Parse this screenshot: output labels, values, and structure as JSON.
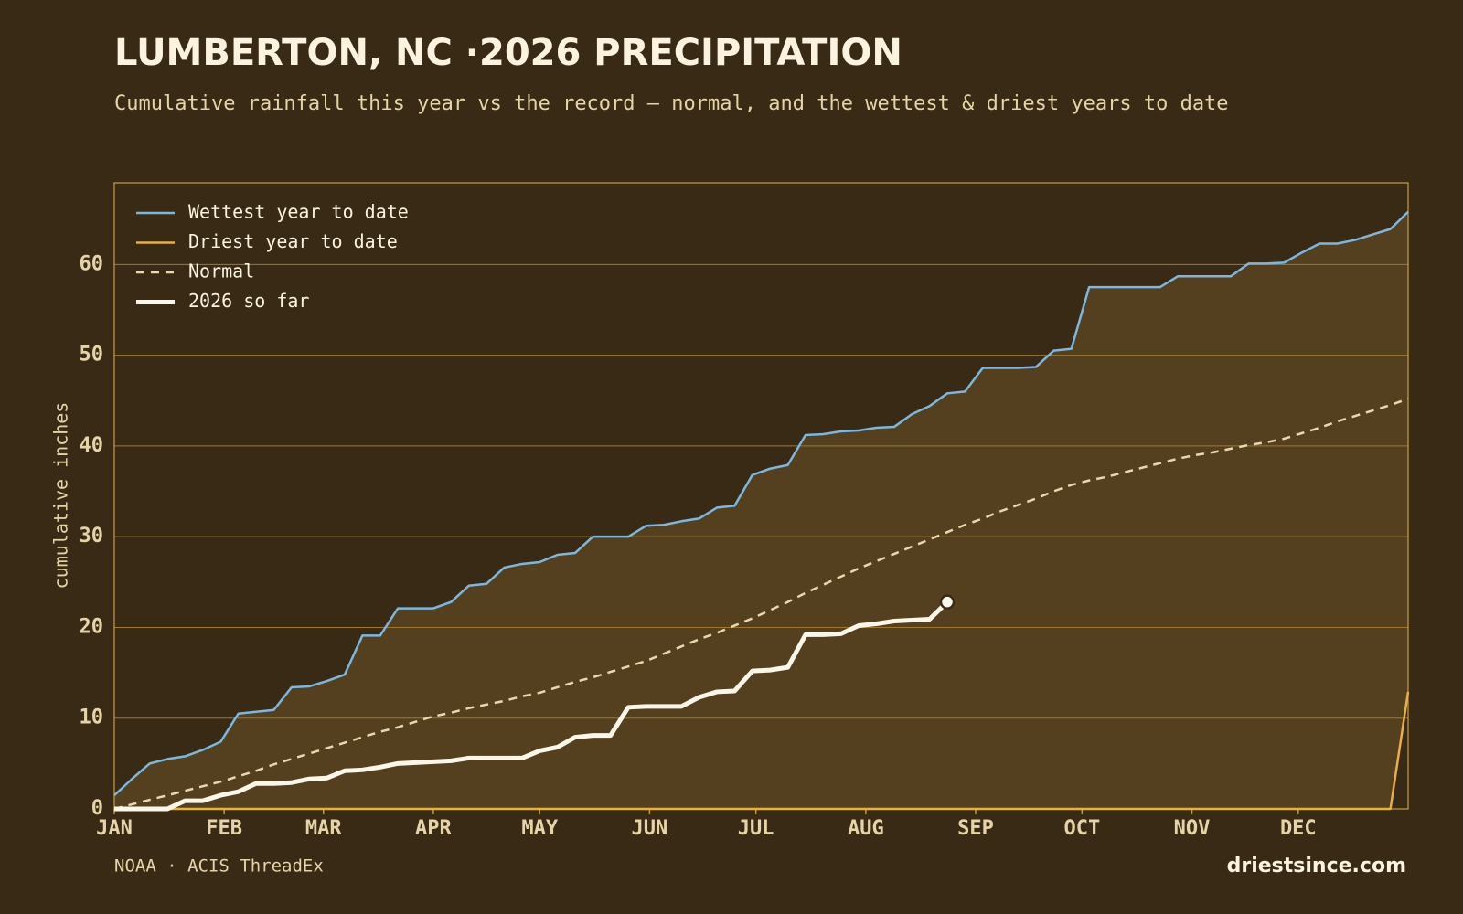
{
  "chart_data": {
    "type": "line",
    "title": "LUMBERTON, NC ·2026 PRECIPITATION",
    "subtitle": "Cumulative rainfall this year vs the record — normal, and the wettest & driest years to date",
    "y_label": "cumulative inches",
    "source": "NOAA · ACIS ThreadEx",
    "brand": "driestsince.com",
    "x": [
      0,
      5,
      10,
      15,
      20,
      25,
      30,
      35,
      40,
      45,
      50,
      55,
      60,
      65,
      70,
      75,
      80,
      85,
      90,
      95,
      100,
      105,
      110,
      115,
      120,
      125,
      130,
      135,
      140,
      145,
      150,
      155,
      160,
      165,
      170,
      175,
      180,
      185,
      190,
      195,
      200,
      205,
      210,
      215,
      220,
      225,
      230,
      235,
      240,
      245,
      250,
      255,
      260,
      265,
      270,
      275,
      280,
      285,
      290,
      295,
      300,
      305,
      310,
      315,
      320,
      325,
      330,
      335,
      340,
      345,
      350,
      355,
      360,
      365
    ],
    "xlim": [
      0,
      365
    ],
    "xticks": [
      {
        "value": 0,
        "label": "JAN"
      },
      {
        "value": 31,
        "label": "FEB"
      },
      {
        "value": 59,
        "label": "MAR"
      },
      {
        "value": 90,
        "label": "APR"
      },
      {
        "value": 120,
        "label": "MAY"
      },
      {
        "value": 151,
        "label": "JUN"
      },
      {
        "value": 181,
        "label": "JUL"
      },
      {
        "value": 212,
        "label": "AUG"
      },
      {
        "value": 243,
        "label": "SEP"
      },
      {
        "value": 273,
        "label": "OCT"
      },
      {
        "value": 304,
        "label": "NOV"
      },
      {
        "value": 334,
        "label": "DEC"
      }
    ],
    "ylim": [
      0,
      69
    ],
    "yticks": [
      0,
      10,
      20,
      30,
      40,
      50,
      60
    ],
    "grid": true,
    "legend": "top-left",
    "series": [
      {
        "name": "Wettest year to date",
        "color": "#7db7e0",
        "width": 2.5,
        "dashed": false,
        "values": [
          1.5,
          3.3,
          5.0,
          5.5,
          5.8,
          6.5,
          7.4,
          10.5,
          10.7,
          10.9,
          13.4,
          13.5,
          14.1,
          14.8,
          19.1,
          19.1,
          22.1,
          22.1,
          22.1,
          22.8,
          24.6,
          24.8,
          26.6,
          27.0,
          27.2,
          28.0,
          28.2,
          30.0,
          30.0,
          30.0,
          31.2,
          31.3,
          31.7,
          32.0,
          33.2,
          33.4,
          36.8,
          37.5,
          37.9,
          41.2,
          41.3,
          41.6,
          41.7,
          42.0,
          42.1,
          43.5,
          44.4,
          45.8,
          46.0,
          48.6,
          48.6,
          48.6,
          48.7,
          50.5,
          50.7,
          57.5,
          57.5,
          57.5,
          57.5,
          57.5,
          58.7,
          58.7,
          58.7,
          58.7,
          60.1,
          60.1,
          60.2,
          61.3,
          62.3,
          62.3,
          62.7,
          63.3,
          63.9,
          65.8
        ]
      },
      {
        "name": "Driest year to date",
        "color": "#e8b040",
        "width": 2.5,
        "dashed": false,
        "values": [
          0,
          0,
          0,
          0,
          0,
          0,
          0,
          0,
          0,
          0,
          0,
          0,
          0,
          0,
          0,
          0,
          0,
          0,
          0,
          0,
          0,
          0,
          0,
          0,
          0,
          0,
          0,
          0,
          0,
          0,
          0,
          0,
          0,
          0,
          0,
          0,
          0,
          0,
          0,
          0,
          0,
          0,
          0,
          0,
          0,
          0,
          0,
          0,
          0,
          0,
          0,
          0,
          0,
          0,
          0,
          0,
          0,
          0,
          0,
          0,
          0,
          0,
          0,
          0,
          0,
          0,
          0,
          0,
          0,
          0,
          0,
          0,
          0,
          12.9
        ]
      },
      {
        "name": "Normal",
        "color": "#e8d8b0",
        "width": 2.5,
        "dashed": true,
        "values": [
          0,
          0.5,
          1.0,
          1.5,
          2.0,
          2.5,
          3.0,
          3.6,
          4.2,
          4.9,
          5.5,
          6.1,
          6.7,
          7.3,
          7.9,
          8.5,
          9.0,
          9.6,
          10.2,
          10.6,
          11.1,
          11.5,
          11.9,
          12.4,
          12.8,
          13.4,
          14.0,
          14.5,
          15.1,
          15.7,
          16.3,
          17.1,
          17.9,
          18.7,
          19.4,
          20.2,
          21.0,
          21.9,
          22.8,
          23.8,
          24.7,
          25.6,
          26.5,
          27.3,
          28.1,
          28.9,
          29.7,
          30.5,
          31.3,
          32.0,
          32.8,
          33.5,
          34.2,
          35.0,
          35.7,
          36.2,
          36.6,
          37.1,
          37.6,
          38.1,
          38.6,
          39.0,
          39.3,
          39.7,
          40.1,
          40.4,
          40.8,
          41.4,
          42.0,
          42.7,
          43.3,
          43.9,
          44.5,
          45.2
        ]
      },
      {
        "name": "2026 so far",
        "color": "#fbf6ea",
        "width": 5,
        "dashed": false,
        "values": [
          0,
          0,
          0,
          0,
          0.9,
          0.9,
          1.5,
          1.9,
          2.8,
          2.8,
          2.9,
          3.3,
          3.4,
          4.2,
          4.3,
          4.6,
          5.0,
          5.1,
          5.2,
          5.3,
          5.6,
          5.6,
          5.6,
          5.6,
          6.4,
          6.8,
          7.9,
          8.1,
          8.1,
          11.2,
          11.3,
          11.3,
          11.3,
          12.3,
          12.9,
          13.0,
          15.2,
          15.3,
          15.6,
          19.2,
          19.2,
          19.3,
          20.2,
          20.4,
          20.7,
          20.8,
          20.9,
          22.8,
          null,
          null,
          null,
          null,
          null,
          null,
          null,
          null,
          null,
          null,
          null,
          null,
          null,
          null,
          null,
          null,
          null,
          null,
          null,
          null,
          null,
          null,
          null,
          null,
          null,
          null
        ]
      }
    ]
  }
}
